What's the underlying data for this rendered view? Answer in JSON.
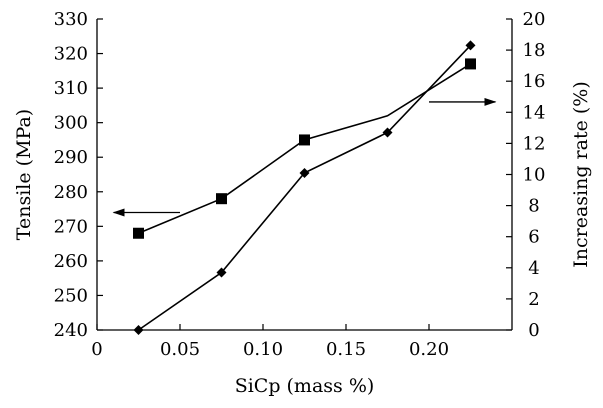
{
  "chart_data": {
    "type": "line",
    "title": "",
    "xlabel": "SiCp (mass %)",
    "ylabel_left": "Tensile (MPa)",
    "ylabel_right": "Increasing rate (%)",
    "xlim": [
      0,
      0.25
    ],
    "ylim_left": [
      240,
      330
    ],
    "ylim_right": [
      0,
      20
    ],
    "x_ticks": [
      "0",
      "0.05",
      "0.10",
      "0.15",
      "0.20"
    ],
    "y_ticks_left": [
      "240",
      "250",
      "260",
      "270",
      "280",
      "290",
      "300",
      "310",
      "320",
      "330"
    ],
    "y_ticks_right": [
      "0",
      "2",
      "4",
      "6",
      "8",
      "10",
      "12",
      "14",
      "16",
      "18",
      "20"
    ],
    "grid": false,
    "legend": "none",
    "series": [
      {
        "axis": "left",
        "marker": "square",
        "x": [
          0.025,
          0.075,
          0.125,
          0.175,
          0.225
        ],
        "y": [
          268,
          278,
          295,
          302,
          317
        ],
        "markers_shown": [
          true,
          true,
          true,
          false,
          true
        ]
      },
      {
        "axis": "right",
        "marker": "diamond",
        "x": [
          0.025,
          0.075,
          0.125,
          0.175,
          0.225
        ],
        "y": [
          0,
          3.7,
          10.1,
          12.7,
          18.3
        ],
        "markers_shown": [
          true,
          true,
          true,
          true,
          true
        ]
      }
    ],
    "annotations": [
      {
        "type": "arrow",
        "direction": "left",
        "target_axis": "left",
        "x_from": 0.05,
        "x_to": 0.01,
        "y_left": 274
      },
      {
        "type": "arrow",
        "direction": "right",
        "target_axis": "right",
        "x_from": 0.2,
        "x_to": 0.24,
        "y_left": 306
      }
    ],
    "colors": {
      "line": "#000000",
      "marker": "#000000"
    }
  }
}
